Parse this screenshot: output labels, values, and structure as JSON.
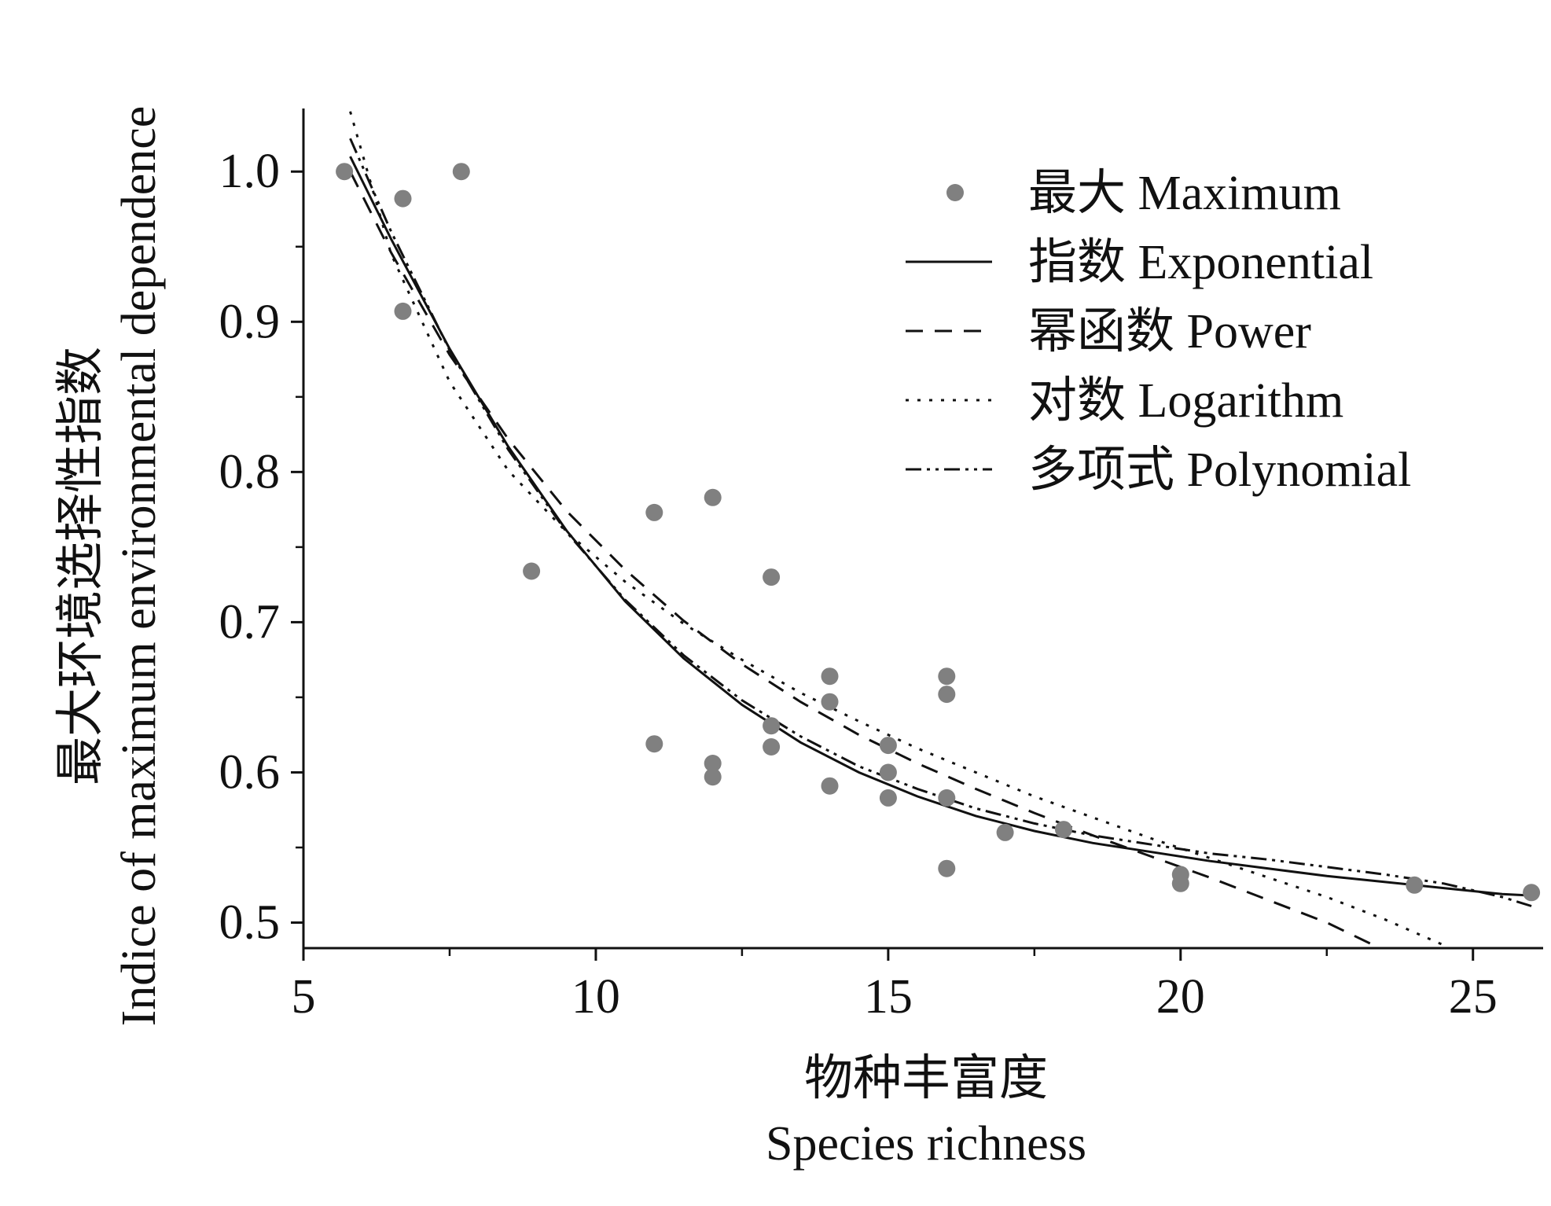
{
  "chart_data": {
    "type": "scatter",
    "title": "",
    "xlabel_cn": "物种丰富度",
    "xlabel_en": "Species richness",
    "ylabel_cn": "最大环境选择性指数",
    "ylabel_en": "Indice of maximum environmental dependence",
    "xlim": [
      5,
      26.2
    ],
    "ylim": [
      0.483,
      1.042
    ],
    "x_ticks": [
      5,
      10,
      15,
      20,
      25
    ],
    "x_tick_labels": [
      "5",
      "10",
      "15",
      "20",
      "25"
    ],
    "y_ticks": [
      0.5,
      0.6,
      0.7,
      0.8,
      0.9,
      1.0
    ],
    "y_tick_labels": [
      "0.5",
      "0.6",
      "0.7",
      "0.8",
      "0.9",
      "1.0"
    ],
    "grid": false,
    "legend_position": "top-right",
    "colors": {
      "points": "#808080",
      "lines": "#111111"
    },
    "series": [
      {
        "name": "最大 Maximum",
        "kind": "points",
        "x": [
          5.7,
          6.7,
          6.7,
          7.7,
          8.9,
          11.0,
          11.0,
          12.0,
          12.0,
          12.0,
          13.0,
          13.0,
          13.0,
          14.0,
          14.0,
          14.0,
          15.0,
          15.0,
          15.0,
          16.0,
          16.0,
          16.0,
          16.0,
          17.0,
          18.0,
          20.0,
          20.0,
          24.0,
          26.0
        ],
        "y": [
          1.0,
          0.982,
          0.907,
          1.0,
          0.734,
          0.773,
          0.619,
          0.783,
          0.606,
          0.597,
          0.73,
          0.631,
          0.617,
          0.664,
          0.647,
          0.591,
          0.618,
          0.6,
          0.583,
          0.664,
          0.652,
          0.583,
          0.536,
          0.56,
          0.562,
          0.532,
          0.526,
          0.525,
          0.52
        ]
      },
      {
        "name": "指数 Exponential",
        "kind": "line",
        "dash": "solid",
        "x": [
          5.8,
          6.5,
          7.5,
          8.5,
          9.5,
          10.5,
          11.5,
          12.5,
          13.5,
          14.5,
          15.5,
          16.5,
          17.5,
          18.5,
          19.5,
          20.5,
          21.5,
          22.5,
          23.5,
          24.5,
          25.5,
          26.0
        ],
        "y": [
          1.01,
          0.955,
          0.882,
          0.817,
          0.761,
          0.714,
          0.676,
          0.645,
          0.62,
          0.6,
          0.584,
          0.571,
          0.561,
          0.553,
          0.547,
          0.541,
          0.536,
          0.531,
          0.527,
          0.523,
          0.519,
          0.518
        ]
      },
      {
        "name": "幂函数 Power",
        "kind": "line",
        "dash": "dashed",
        "x": [
          5.8,
          6.5,
          7.5,
          8.5,
          9.5,
          10.5,
          11.5,
          12.5,
          13.5,
          14.5,
          15.5,
          16.5,
          17.5,
          18.5,
          19.5,
          20.5,
          21.5,
          22.5,
          23.3
        ],
        "y": [
          1.0,
          0.946,
          0.878,
          0.822,
          0.774,
          0.735,
          0.701,
          0.672,
          0.647,
          0.625,
          0.606,
          0.589,
          0.573,
          0.558,
          0.544,
          0.53,
          0.515,
          0.5,
          0.485
        ]
      },
      {
        "name": "对数 Logarithm",
        "kind": "line",
        "dash": "dotted",
        "x": [
          5.8,
          6.5,
          7.5,
          8.5,
          9.5,
          10.5,
          11.5,
          12.5,
          13.5,
          14.5,
          15.5,
          16.5,
          17.5,
          18.5,
          19.5,
          20.5,
          21.5,
          22.5,
          23.5,
          24.5
        ],
        "y": [
          1.04,
          0.945,
          0.86,
          0.801,
          0.76,
          0.727,
          0.699,
          0.675,
          0.653,
          0.634,
          0.616,
          0.6,
          0.584,
          0.57,
          0.556,
          0.543,
          0.53,
          0.517,
          0.502,
          0.485
        ]
      },
      {
        "name": "多项式 Polynomial",
        "kind": "line",
        "dash": "dashdotdot",
        "x": [
          5.8,
          6.5,
          7.5,
          8.5,
          9.5,
          10.5,
          11.5,
          12.5,
          13.5,
          14.5,
          15.5,
          16.5,
          17.5,
          18.5,
          19.5,
          20.5,
          21.5,
          22.5,
          23.5,
          24.5,
          25.5,
          26.0
        ],
        "y": [
          1.022,
          0.96,
          0.881,
          0.815,
          0.76,
          0.715,
          0.678,
          0.648,
          0.624,
          0.604,
          0.589,
          0.576,
          0.566,
          0.558,
          0.552,
          0.546,
          0.542,
          0.537,
          0.532,
          0.526,
          0.517,
          0.511
        ]
      }
    ]
  }
}
